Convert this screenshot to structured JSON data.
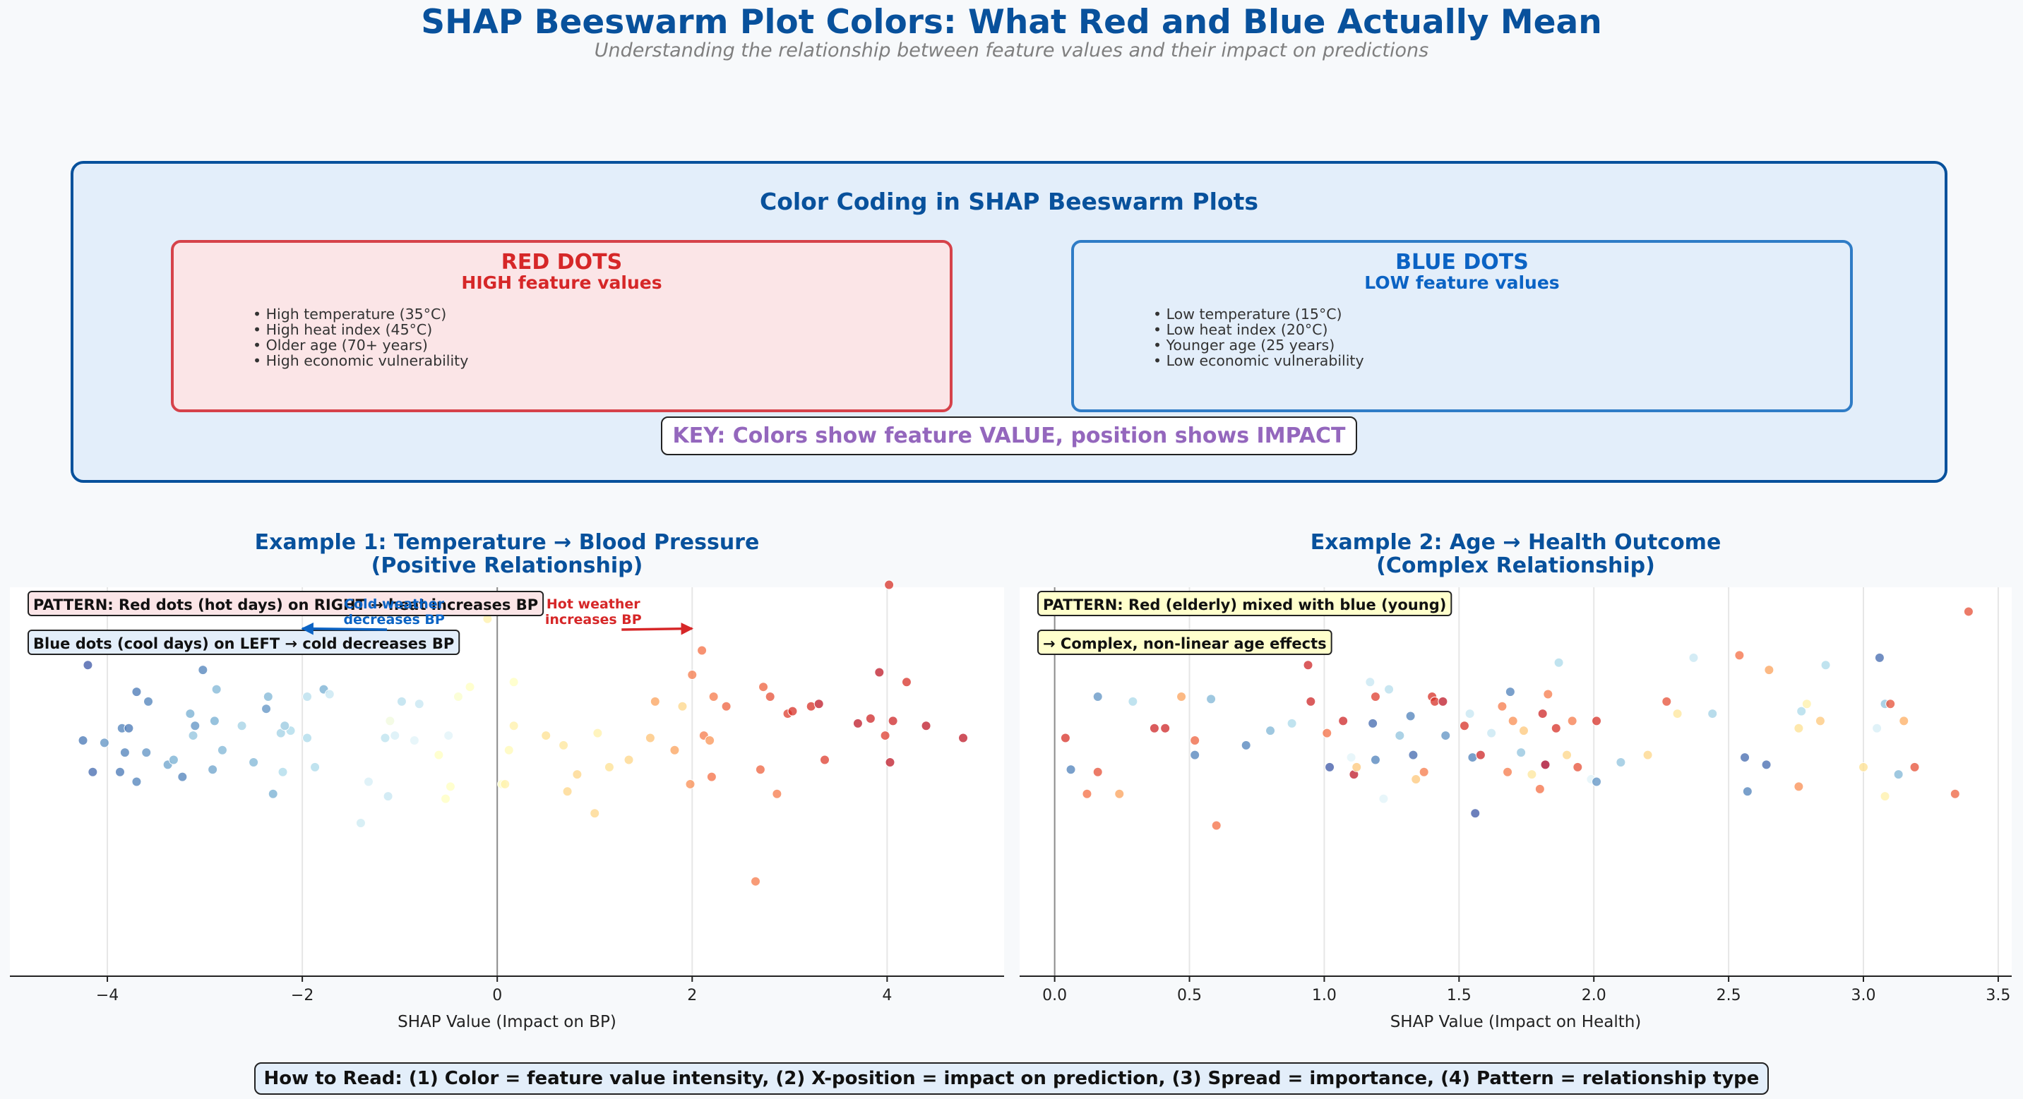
{
  "header": {
    "title": "SHAP Beeswarm Plot Colors: What Red and Blue Actually Mean",
    "subtitle": "Understanding the relationship between feature values and their impact on predictions"
  },
  "legend_panel": {
    "title": "Color Coding in SHAP Beeswarm Plots",
    "red": {
      "title": "RED DOTS",
      "subtitle": "HIGH feature values",
      "items": [
        "• High temperature (35°C)",
        "• High heat index (45°C)",
        "• Older age (70+ years)",
        "• High economic vulnerability"
      ]
    },
    "blue": {
      "title": "BLUE DOTS",
      "subtitle": "LOW feature values",
      "items": [
        "• Low temperature (15°C)",
        "• Low heat index (20°C)",
        "• Younger age (25 years)",
        "• Low economic vulnerability"
      ]
    },
    "key": "KEY: Colors show feature VALUE, position shows IMPACT"
  },
  "colors": {
    "title": "#08519c",
    "red": "#d62728",
    "blue": "#0b63c4",
    "key": "#9467bd",
    "colormap": [
      "#313695",
      "#4575b4",
      "#74add1",
      "#abd9e9",
      "#e0f3f8",
      "#ffffbf",
      "#fee090",
      "#fdae61",
      "#f46d43",
      "#d73027",
      "#a50026"
    ]
  },
  "footer": "How to Read: (1) Color = feature value intensity, (2) X-position = impact on prediction, (3) Spread = importance, (4) Pattern = relationship type",
  "chart_data": [
    {
      "type": "scatter",
      "title": "Example 1: Temperature → Blood Pressure\n(Positive Relationship)",
      "title_lines": [
        "Example 1: Temperature → Blood Pressure",
        "(Positive Relationship)"
      ],
      "xlabel": "SHAP Value (Impact on BP)",
      "xlim": [
        -5.0,
        5.2
      ],
      "ylim": [
        -0.95,
        0.65
      ],
      "xticks": [
        -4,
        -2,
        0,
        2,
        4
      ],
      "xtick_labels": [
        "−4",
        "−2",
        "0",
        "2",
        "4"
      ],
      "grid": "x",
      "reference_line_x": 0,
      "color_encoding": "value from 0 (low, blue) to 1 (high, red)",
      "annotations": [
        {
          "text": "PATTERN: Red dots (hot days) on RIGHT → heat increases BP",
          "style": "box-red"
        },
        {
          "text": "Blue dots (cool days) on LEFT → cold decreases BP",
          "style": "box-blue"
        },
        {
          "text": "Cold weather\ndecreases BP",
          "lines": [
            "Cold weather",
            "decreases BP"
          ],
          "color": "#0b63c4",
          "arrow_to": [
            -2.0,
            0.48
          ]
        },
        {
          "text": "Hot weather\nincreases BP",
          "lines": [
            "Hot weather",
            "increases BP"
          ],
          "color": "#d62728",
          "arrow_to": [
            2.0,
            0.48
          ]
        }
      ],
      "points": [
        {
          "x": -4.56,
          "y": 0.39,
          "v": 0.08
        },
        {
          "x": -4.2,
          "y": 0.33,
          "v": 0.05
        },
        {
          "x": -4.03,
          "y": 0.01,
          "v": 0.15
        },
        {
          "x": -3.7,
          "y": 0.22,
          "v": 0.1
        },
        {
          "x": -3.58,
          "y": 0.18,
          "v": 0.12
        },
        {
          "x": -3.85,
          "y": 0.07,
          "v": 0.12
        },
        {
          "x": -3.78,
          "y": 0.07,
          "v": 0.1
        },
        {
          "x": -4.25,
          "y": 0.02,
          "v": 0.1
        },
        {
          "x": -3.82,
          "y": -0.03,
          "v": 0.12
        },
        {
          "x": -3.6,
          "y": -0.03,
          "v": 0.15
        },
        {
          "x": -4.15,
          "y": -0.11,
          "v": 0.08
        },
        {
          "x": -3.87,
          "y": -0.11,
          "v": 0.1
        },
        {
          "x": -3.7,
          "y": -0.15,
          "v": 0.12
        },
        {
          "x": -3.38,
          "y": -0.08,
          "v": 0.18
        },
        {
          "x": -3.32,
          "y": -0.06,
          "v": 0.2
        },
        {
          "x": -3.23,
          "y": -0.13,
          "v": 0.12
        },
        {
          "x": -3.02,
          "y": 0.31,
          "v": 0.12
        },
        {
          "x": -3.15,
          "y": 0.13,
          "v": 0.2
        },
        {
          "x": -3.1,
          "y": 0.08,
          "v": 0.15
        },
        {
          "x": -2.88,
          "y": 0.23,
          "v": 0.22
        },
        {
          "x": -2.9,
          "y": 0.1,
          "v": 0.2
        },
        {
          "x": -3.12,
          "y": 0.04,
          "v": 0.25
        },
        {
          "x": -2.82,
          "y": -0.02,
          "v": 0.22
        },
        {
          "x": -2.92,
          "y": -0.1,
          "v": 0.18
        },
        {
          "x": -2.62,
          "y": 0.08,
          "v": 0.28
        },
        {
          "x": -2.5,
          "y": -0.07,
          "v": 0.22
        },
        {
          "x": -2.35,
          "y": 0.2,
          "v": 0.22
        },
        {
          "x": -2.37,
          "y": 0.15,
          "v": 0.15
        },
        {
          "x": -2.22,
          "y": 0.05,
          "v": 0.28
        },
        {
          "x": -2.12,
          "y": 0.06,
          "v": 0.3
        },
        {
          "x": -2.18,
          "y": 0.08,
          "v": 0.26
        },
        {
          "x": -2.3,
          "y": -0.2,
          "v": 0.2
        },
        {
          "x": -2.2,
          "y": -0.11,
          "v": 0.3
        },
        {
          "x": -1.95,
          "y": 0.2,
          "v": 0.32
        },
        {
          "x": -1.78,
          "y": 0.23,
          "v": 0.2
        },
        {
          "x": -1.75,
          "y": 0.42,
          "v": 0.28
        },
        {
          "x": -1.95,
          "y": 0.03,
          "v": 0.3
        },
        {
          "x": -1.72,
          "y": 0.21,
          "v": 0.35
        },
        {
          "x": -1.87,
          "y": -0.09,
          "v": 0.3
        },
        {
          "x": -1.4,
          "y": -0.32,
          "v": 0.36
        },
        {
          "x": -1.32,
          "y": -0.15,
          "v": 0.38
        },
        {
          "x": -1.15,
          "y": 0.03,
          "v": 0.33
        },
        {
          "x": -1.1,
          "y": 0.1,
          "v": 0.45
        },
        {
          "x": -1.05,
          "y": 0.04,
          "v": 0.38
        },
        {
          "x": -1.12,
          "y": -0.21,
          "v": 0.35
        },
        {
          "x": -0.98,
          "y": 0.18,
          "v": 0.32
        },
        {
          "x": -0.8,
          "y": 0.17,
          "v": 0.35
        },
        {
          "x": -0.85,
          "y": 0.02,
          "v": 0.4
        },
        {
          "x": -0.5,
          "y": 0.04,
          "v": 0.4
        },
        {
          "x": -0.6,
          "y": -0.04,
          "v": 0.5
        },
        {
          "x": -0.48,
          "y": -0.17,
          "v": 0.5
        },
        {
          "x": -0.53,
          "y": -0.22,
          "v": 0.5
        },
        {
          "x": -0.4,
          "y": 0.2,
          "v": 0.48
        },
        {
          "x": -0.28,
          "y": 0.24,
          "v": 0.5
        },
        {
          "x": -0.1,
          "y": 0.52,
          "v": 0.55
        },
        {
          "x": 0.05,
          "y": -0.16,
          "v": 0.5
        },
        {
          "x": 0.08,
          "y": -0.16,
          "v": 0.55
        },
        {
          "x": 0.12,
          "y": -0.02,
          "v": 0.52
        },
        {
          "x": 0.17,
          "y": 0.26,
          "v": 0.5
        },
        {
          "x": 0.17,
          "y": 0.08,
          "v": 0.55
        },
        {
          "x": 0.5,
          "y": 0.04,
          "v": 0.6
        },
        {
          "x": 0.68,
          "y": 0.0,
          "v": 0.58
        },
        {
          "x": 0.72,
          "y": -0.19,
          "v": 0.62
        },
        {
          "x": 0.82,
          "y": -0.12,
          "v": 0.62
        },
        {
          "x": 1.0,
          "y": -0.28,
          "v": 0.62
        },
        {
          "x": 1.03,
          "y": 0.05,
          "v": 0.55
        },
        {
          "x": 1.15,
          "y": -0.09,
          "v": 0.6
        },
        {
          "x": 1.35,
          "y": -0.06,
          "v": 0.62
        },
        {
          "x": 1.57,
          "y": 0.03,
          "v": 0.66
        },
        {
          "x": 1.62,
          "y": 0.18,
          "v": 0.72
        },
        {
          "x": 1.82,
          "y": -0.02,
          "v": 0.72
        },
        {
          "x": 1.9,
          "y": 0.16,
          "v": 0.62
        },
        {
          "x": 1.98,
          "y": -0.16,
          "v": 0.75
        },
        {
          "x": 2.0,
          "y": 0.29,
          "v": 0.78
        },
        {
          "x": 2.1,
          "y": 0.39,
          "v": 0.8
        },
        {
          "x": 2.12,
          "y": 0.04,
          "v": 0.78
        },
        {
          "x": 2.18,
          "y": 0.02,
          "v": 0.74
        },
        {
          "x": 2.22,
          "y": 0.2,
          "v": 0.78
        },
        {
          "x": 2.2,
          "y": -0.13,
          "v": 0.8
        },
        {
          "x": 2.35,
          "y": 0.16,
          "v": 0.82
        },
        {
          "x": 2.65,
          "y": -0.56,
          "v": 0.78
        },
        {
          "x": 2.7,
          "y": -0.1,
          "v": 0.82
        },
        {
          "x": 2.73,
          "y": 0.24,
          "v": 0.82
        },
        {
          "x": 2.8,
          "y": 0.2,
          "v": 0.85
        },
        {
          "x": 2.87,
          "y": -0.2,
          "v": 0.78
        },
        {
          "x": 2.98,
          "y": 0.13,
          "v": 0.88
        },
        {
          "x": 3.03,
          "y": 0.14,
          "v": 0.9
        },
        {
          "x": 3.22,
          "y": 0.16,
          "v": 0.9
        },
        {
          "x": 3.3,
          "y": 0.17,
          "v": 0.95
        },
        {
          "x": 3.36,
          "y": -0.06,
          "v": 0.88
        },
        {
          "x": 3.7,
          "y": 0.09,
          "v": 0.95
        },
        {
          "x": 3.83,
          "y": 0.11,
          "v": 0.92
        },
        {
          "x": 3.92,
          "y": 0.3,
          "v": 0.95
        },
        {
          "x": 3.98,
          "y": 0.04,
          "v": 0.88
        },
        {
          "x": 4.02,
          "y": 0.66,
          "v": 0.9
        },
        {
          "x": 4.03,
          "y": -0.07,
          "v": 0.95
        },
        {
          "x": 4.06,
          "y": 0.1,
          "v": 0.92
        },
        {
          "x": 4.2,
          "y": 0.26,
          "v": 0.9
        },
        {
          "x": 4.4,
          "y": 0.08,
          "v": 0.95
        },
        {
          "x": 4.78,
          "y": 0.03,
          "v": 0.95
        }
      ]
    },
    {
      "type": "scatter",
      "title": "Example 2: Age → Health Outcome\n(Complex Relationship)",
      "title_lines": [
        "Example 2: Age → Health Outcome",
        "(Complex Relationship)"
      ],
      "xlabel": "SHAP Value (Impact on Health)",
      "xlim": [
        -0.13,
        3.55
      ],
      "ylim": [
        -0.95,
        0.65
      ],
      "xticks": [
        0.0,
        0.5,
        1.0,
        1.5,
        2.0,
        2.5,
        3.0,
        3.5
      ],
      "xtick_labels": [
        "0.0",
        "0.5",
        "1.0",
        "1.5",
        "2.0",
        "2.5",
        "3.0",
        "3.5"
      ],
      "grid": "x",
      "reference_line_x": 0,
      "color_encoding": "value from 0 (low, blue) to 1 (high, red)",
      "annotations": [
        {
          "text": "PATTERN: Red (elderly) mixed with blue (young)",
          "style": "box-yellow"
        },
        {
          "text": "→ Complex, non-linear age effects",
          "style": "box-yellow"
        }
      ],
      "points": [
        {
          "x": 0.04,
          "y": 0.03,
          "v": 0.9
        },
        {
          "x": 0.06,
          "y": -0.1,
          "v": 0.12
        },
        {
          "x": 0.12,
          "y": -0.2,
          "v": 0.8
        },
        {
          "x": 0.16,
          "y": 0.2,
          "v": 0.15
        },
        {
          "x": 0.16,
          "y": -0.11,
          "v": 0.85
        },
        {
          "x": 0.24,
          "y": -0.2,
          "v": 0.72
        },
        {
          "x": 0.29,
          "y": 0.18,
          "v": 0.3
        },
        {
          "x": 0.37,
          "y": 0.07,
          "v": 0.92
        },
        {
          "x": 0.41,
          "y": 0.07,
          "v": 0.92
        },
        {
          "x": 0.47,
          "y": 0.2,
          "v": 0.72
        },
        {
          "x": 0.52,
          "y": 0.02,
          "v": 0.82
        },
        {
          "x": 0.52,
          "y": -0.04,
          "v": 0.12
        },
        {
          "x": 0.58,
          "y": 0.19,
          "v": 0.22
        },
        {
          "x": 0.6,
          "y": -0.33,
          "v": 0.8
        },
        {
          "x": 0.71,
          "y": 0.0,
          "v": 0.12
        },
        {
          "x": 0.8,
          "y": 0.06,
          "v": 0.22
        },
        {
          "x": 0.88,
          "y": 0.09,
          "v": 0.3
        },
        {
          "x": 0.94,
          "y": 0.33,
          "v": 0.92
        },
        {
          "x": 0.95,
          "y": 0.18,
          "v": 0.92
        },
        {
          "x": 1.01,
          "y": 0.05,
          "v": 0.8
        },
        {
          "x": 1.02,
          "y": -0.09,
          "v": 0.05
        },
        {
          "x": 1.07,
          "y": 0.1,
          "v": 0.92
        },
        {
          "x": 1.1,
          "y": -0.05,
          "v": 0.4
        },
        {
          "x": 1.11,
          "y": -0.12,
          "v": 0.95
        },
        {
          "x": 1.12,
          "y": -0.09,
          "v": 0.65
        },
        {
          "x": 1.17,
          "y": 0.26,
          "v": 0.35
        },
        {
          "x": 1.18,
          "y": 0.09,
          "v": 0.08
        },
        {
          "x": 1.19,
          "y": 0.2,
          "v": 0.88
        },
        {
          "x": 1.19,
          "y": -0.06,
          "v": 0.12
        },
        {
          "x": 1.22,
          "y": -0.22,
          "v": 0.4
        },
        {
          "x": 1.24,
          "y": 0.23,
          "v": 0.32
        },
        {
          "x": 1.28,
          "y": 0.04,
          "v": 0.25
        },
        {
          "x": 1.32,
          "y": 0.12,
          "v": 0.12
        },
        {
          "x": 1.33,
          "y": -0.04,
          "v": 0.08
        },
        {
          "x": 1.34,
          "y": -0.14,
          "v": 0.65
        },
        {
          "x": 1.37,
          "y": -0.11,
          "v": 0.78
        },
        {
          "x": 1.4,
          "y": 0.2,
          "v": 0.9
        },
        {
          "x": 1.41,
          "y": 0.18,
          "v": 0.9
        },
        {
          "x": 1.44,
          "y": 0.18,
          "v": 0.95
        },
        {
          "x": 1.45,
          "y": 0.04,
          "v": 0.15
        },
        {
          "x": 1.52,
          "y": 0.08,
          "v": 0.9
        },
        {
          "x": 1.54,
          "y": 0.13,
          "v": 0.35
        },
        {
          "x": 1.55,
          "y": -0.05,
          "v": 0.12
        },
        {
          "x": 1.56,
          "y": -0.28,
          "v": 0.05
        },
        {
          "x": 1.58,
          "y": -0.04,
          "v": 0.92
        },
        {
          "x": 1.62,
          "y": 0.05,
          "v": 0.35
        },
        {
          "x": 1.66,
          "y": 0.16,
          "v": 0.78
        },
        {
          "x": 1.68,
          "y": -0.11,
          "v": 0.78
        },
        {
          "x": 1.69,
          "y": 0.22,
          "v": 0.12
        },
        {
          "x": 1.7,
          "y": 0.1,
          "v": 0.75
        },
        {
          "x": 1.73,
          "y": -0.03,
          "v": 0.25
        },
        {
          "x": 1.74,
          "y": 0.06,
          "v": 0.65
        },
        {
          "x": 1.77,
          "y": -0.12,
          "v": 0.58
        },
        {
          "x": 1.8,
          "y": -0.18,
          "v": 0.8
        },
        {
          "x": 1.81,
          "y": 0.13,
          "v": 0.92
        },
        {
          "x": 1.82,
          "y": -0.08,
          "v": 1.0
        },
        {
          "x": 1.83,
          "y": 0.21,
          "v": 0.78
        },
        {
          "x": 1.86,
          "y": 0.07,
          "v": 0.9
        },
        {
          "x": 1.87,
          "y": 0.34,
          "v": 0.3
        },
        {
          "x": 1.9,
          "y": -0.04,
          "v": 0.62
        },
        {
          "x": 1.92,
          "y": 0.1,
          "v": 0.78
        },
        {
          "x": 1.94,
          "y": -0.09,
          "v": 0.85
        },
        {
          "x": 1.99,
          "y": -0.14,
          "v": 0.4
        },
        {
          "x": 2.01,
          "y": -0.15,
          "v": 0.15
        },
        {
          "x": 2.01,
          "y": 0.1,
          "v": 0.9
        },
        {
          "x": 2.1,
          "y": -0.07,
          "v": 0.25
        },
        {
          "x": 2.2,
          "y": -0.04,
          "v": 0.62
        },
        {
          "x": 2.27,
          "y": 0.18,
          "v": 0.85
        },
        {
          "x": 2.31,
          "y": 0.13,
          "v": 0.58
        },
        {
          "x": 2.37,
          "y": 0.36,
          "v": 0.35
        },
        {
          "x": 2.44,
          "y": 0.13,
          "v": 0.28
        },
        {
          "x": 2.54,
          "y": 0.37,
          "v": 0.8
        },
        {
          "x": 2.56,
          "y": -0.05,
          "v": 0.08
        },
        {
          "x": 2.57,
          "y": -0.19,
          "v": 0.12
        },
        {
          "x": 2.64,
          "y": -0.08,
          "v": 0.08
        },
        {
          "x": 2.65,
          "y": 0.31,
          "v": 0.72
        },
        {
          "x": 2.76,
          "y": -0.17,
          "v": 0.75
        },
        {
          "x": 2.76,
          "y": 0.07,
          "v": 0.6
        },
        {
          "x": 2.77,
          "y": 0.14,
          "v": 0.3
        },
        {
          "x": 2.79,
          "y": 0.17,
          "v": 0.55
        },
        {
          "x": 2.84,
          "y": 0.1,
          "v": 0.65
        },
        {
          "x": 2.86,
          "y": 0.33,
          "v": 0.3
        },
        {
          "x": 3.0,
          "y": -0.09,
          "v": 0.6
        },
        {
          "x": 3.05,
          "y": 0.07,
          "v": 0.38
        },
        {
          "x": 3.06,
          "y": 0.36,
          "v": 0.08
        },
        {
          "x": 3.08,
          "y": 0.17,
          "v": 0.25
        },
        {
          "x": 3.08,
          "y": -0.21,
          "v": 0.55
        },
        {
          "x": 3.1,
          "y": 0.17,
          "v": 0.85
        },
        {
          "x": 3.13,
          "y": -0.12,
          "v": 0.22
        },
        {
          "x": 3.15,
          "y": 0.1,
          "v": 0.7
        },
        {
          "x": 3.19,
          "y": -0.09,
          "v": 0.85
        },
        {
          "x": 3.34,
          "y": -0.2,
          "v": 0.82
        },
        {
          "x": 3.39,
          "y": 0.55,
          "v": 0.85
        }
      ]
    }
  ]
}
